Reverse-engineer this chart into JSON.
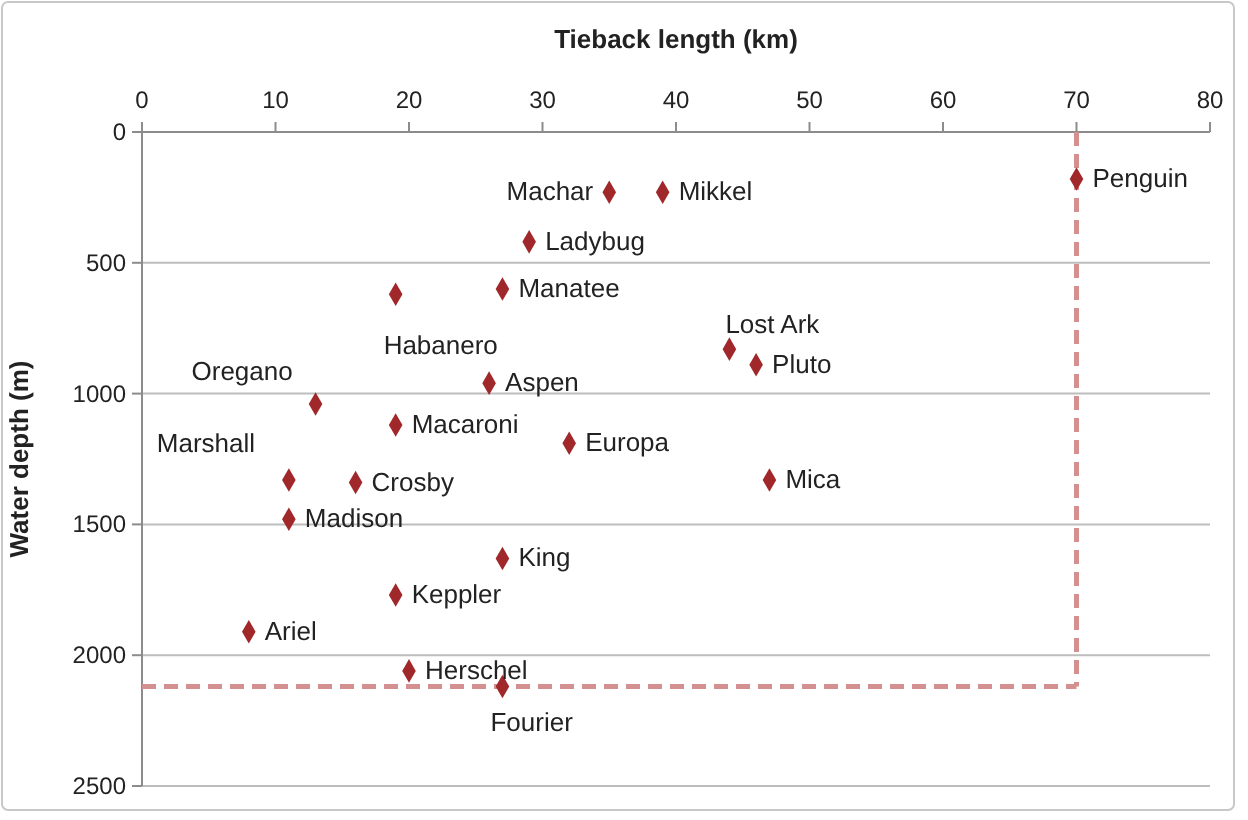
{
  "chart_data": {
    "type": "scatter",
    "xlabel": "Tieback length (km)",
    "ylabel": "Water depth (m)",
    "x": [
      35,
      39,
      70,
      29,
      27,
      19,
      44,
      46,
      26,
      13,
      19,
      32,
      11,
      16,
      47,
      11,
      27,
      19,
      8,
      20,
      27
    ],
    "values": [
      230,
      230,
      180,
      420,
      600,
      620,
      830,
      890,
      960,
      1040,
      1120,
      1190,
      1330,
      1340,
      1330,
      1480,
      1630,
      1770,
      1910,
      2060,
      2120
    ],
    "color": "#a0282a",
    "marker": "diamond",
    "xlim": [
      0,
      80
    ],
    "xticks": [
      0,
      10,
      20,
      30,
      40,
      50,
      60,
      70,
      80
    ],
    "ylim": [
      2500,
      0
    ],
    "yticks": [
      0,
      500,
      1000,
      1500,
      2000,
      2500
    ],
    "grid": "y",
    "ref_lines": [
      {
        "axis": "x",
        "value": 70,
        "color": "#d48f91",
        "line_style": "dashed"
      },
      {
        "axis": "y",
        "value": 2120,
        "color": "#d48f91",
        "line_style": "dashed"
      }
    ],
    "annotations": [
      {
        "text": "Machar",
        "x": 35,
        "y": 230
      },
      {
        "text": "Mikkel",
        "x": 39,
        "y": 230
      },
      {
        "text": "Penguin",
        "x": 70,
        "y": 180
      },
      {
        "text": "Ladybug",
        "x": 29,
        "y": 420
      },
      {
        "text": "Manatee",
        "x": 27,
        "y": 600
      },
      {
        "text": "Habanero",
        "x": 19,
        "y": 620
      },
      {
        "text": "Lost Ark",
        "x": 44,
        "y": 830
      },
      {
        "text": "Pluto",
        "x": 46,
        "y": 890
      },
      {
        "text": "Aspen",
        "x": 26,
        "y": 960
      },
      {
        "text": "Oregano",
        "x": 13,
        "y": 1040
      },
      {
        "text": "Macaroni",
        "x": 19,
        "y": 1120
      },
      {
        "text": "Europa",
        "x": 32,
        "y": 1190
      },
      {
        "text": "Marshall",
        "x": 11,
        "y": 1330
      },
      {
        "text": "Crosby",
        "x": 16,
        "y": 1340
      },
      {
        "text": "Mica",
        "x": 47,
        "y": 1330
      },
      {
        "text": "Madison",
        "x": 11,
        "y": 1480
      },
      {
        "text": "King",
        "x": 27,
        "y": 1630
      },
      {
        "text": "Keppler",
        "x": 19,
        "y": 1770
      },
      {
        "text": "Ariel",
        "x": 8,
        "y": 1910
      },
      {
        "text": "Herschel",
        "x": 20,
        "y": 2060
      },
      {
        "text": "Fourier",
        "x": 27,
        "y": 2120
      }
    ]
  }
}
